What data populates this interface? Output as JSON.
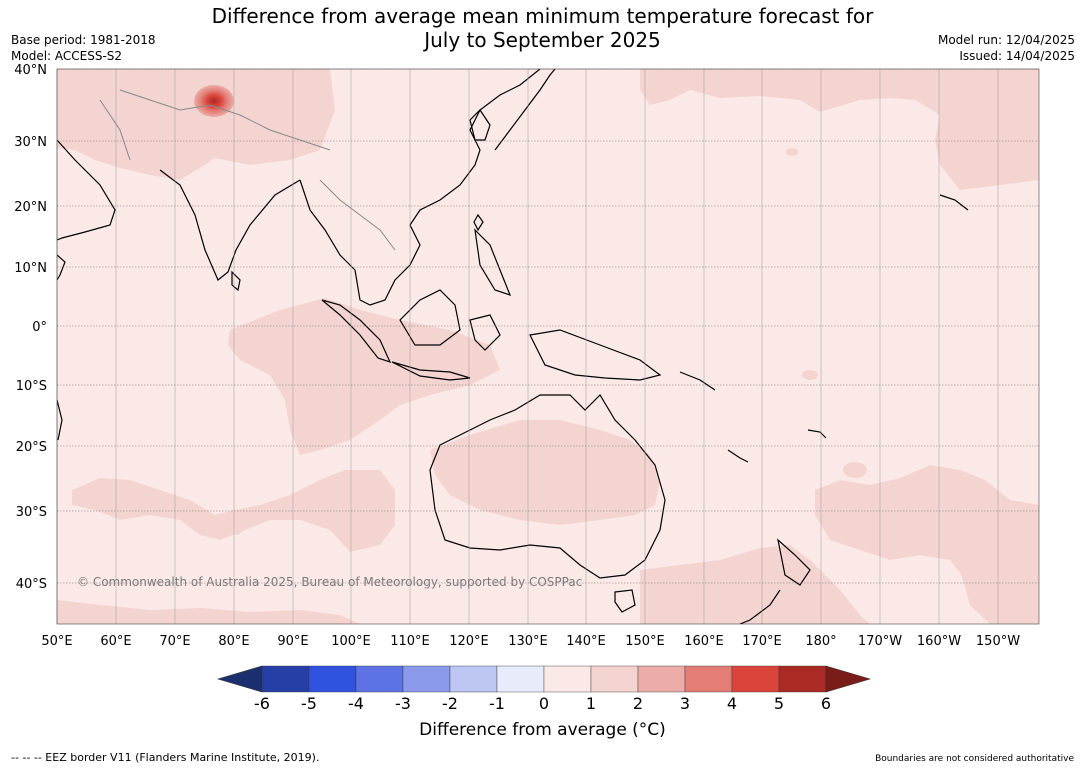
{
  "title": {
    "line1": "Difference from average mean minimum temperature forecast for",
    "line2": "July to September 2025"
  },
  "meta_left": {
    "base_period": "Base period: 1981-2018",
    "model": "Model: ACCESS-S2"
  },
  "meta_right": {
    "model_run": "Model run: 12/04/2025",
    "issued": "Issued: 14/04/2025"
  },
  "map": {
    "region": "Indo-Pacific, 50°E to 150°W, 45°S to 40°N",
    "copyright": "© Commonwealth of Australia 2025, Bureau of Meteorology, supported by COSPPac",
    "longitude_labels": [
      "50°E",
      "60°E",
      "70°E",
      "80°E",
      "90°E",
      "100°E",
      "110°E",
      "120°E",
      "130°E",
      "140°E",
      "150°E",
      "160°E",
      "170°E",
      "180°",
      "170°W",
      "160°W",
      "150°W"
    ],
    "latitude_labels": [
      "40°N",
      "30°N",
      "20°N",
      "10°N",
      "0°",
      "10°S",
      "20°S",
      "30°S",
      "40°S"
    ],
    "background_color": "#fbe9e7",
    "anomaly_1_2_color": "#f4d4d1"
  },
  "colorbar": {
    "label": "Difference from average (°C)",
    "ticks": [
      "-6",
      "-5",
      "-4",
      "-3",
      "-2",
      "-1",
      "0",
      "1",
      "2",
      "3",
      "4",
      "5",
      "6"
    ],
    "colors": [
      "#1b2e6e",
      "#263fa7",
      "#2f52df",
      "#5d73e5",
      "#8b9aeb",
      "#bec6f3",
      "#e8ebfa",
      "#fbe9e7",
      "#f4d4d1",
      "#ecaca7",
      "#e37d76",
      "#d9453b",
      "#aa2a24",
      "#7a1c17"
    ]
  },
  "footer": {
    "left": "--  --  -- EEZ border V11 (Flanders Marine Institute, 2019).",
    "right": "Boundaries are not considered authoritative"
  }
}
